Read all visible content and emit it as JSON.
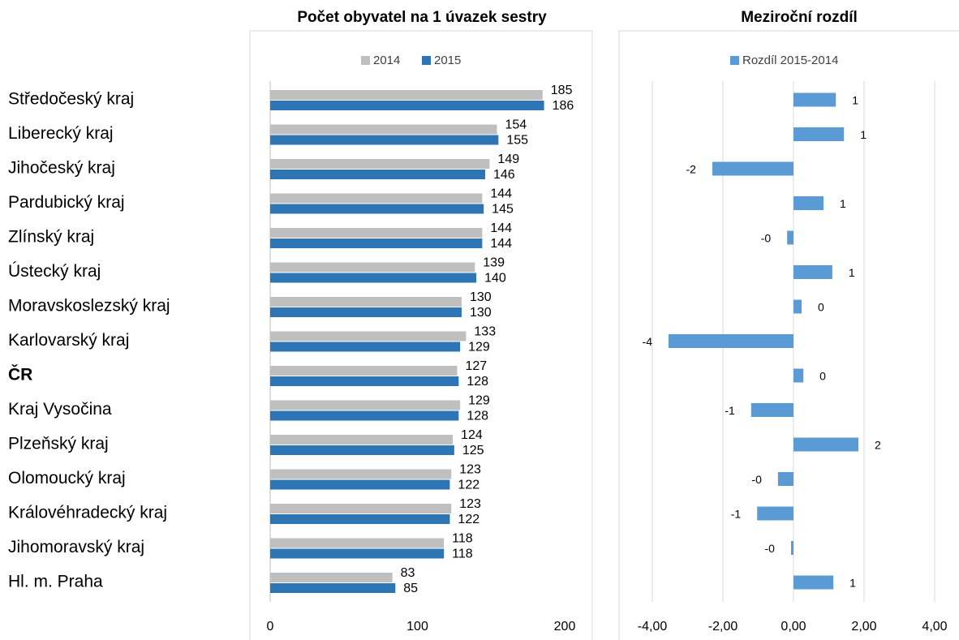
{
  "chart_data": [
    {
      "type": "bar",
      "orientation": "horizontal",
      "title": "Počet obyvatel na 1 úvazek sestry",
      "categories": [
        "Středočeský kraj",
        "Liberecký kraj",
        "Jihočeský kraj",
        "Pardubický kraj",
        "Zlínský kraj",
        "Ústecký kraj",
        "Moravskoslezský kraj",
        "Karlovarský kraj",
        "ČR",
        "Kraj Vysočina",
        "Plzeňský kraj",
        "Olomoucký kraj",
        "Královéhradecký kraj",
        "Jihomoravský kraj",
        "Hl. m. Praha"
      ],
      "series": [
        {
          "name": "2014",
          "color": "#bfbfbf",
          "values": [
            185,
            154,
            149,
            144,
            144,
            139,
            130,
            133,
            127,
            129,
            124,
            123,
            123,
            118,
            83
          ]
        },
        {
          "name": "2015",
          "color": "#2e75b6",
          "values": [
            186,
            155,
            146,
            145,
            144,
            140,
            130,
            129,
            128,
            128,
            125,
            122,
            122,
            118,
            85
          ]
        }
      ],
      "xlim": [
        0,
        200
      ],
      "xticks": [
        0,
        100,
        200
      ],
      "grid": false,
      "legend": "top"
    },
    {
      "type": "bar",
      "orientation": "horizontal",
      "title": "Meziroční rozdíl",
      "series": [
        {
          "name": "Rozdíl 2015-2014",
          "color": "#5b9bd5",
          "values": [
            1.2,
            1.43,
            -2.3,
            0.85,
            -0.18,
            1.1,
            0.23,
            -3.54,
            0.28,
            -1.2,
            1.84,
            -0.44,
            -1.03,
            -0.07,
            1.13
          ],
          "value_labels": [
            "1",
            "1",
            "-2",
            "1",
            "-0",
            "1",
            "0",
            "-4",
            "0",
            "-1",
            "2",
            "-0",
            "-1",
            "-0",
            "1"
          ]
        }
      ],
      "negative_label_color": "#ff0000",
      "xlim": [
        -4,
        4
      ],
      "xticks": [
        {
          "value": -4,
          "label": "-4,00"
        },
        {
          "value": -2,
          "label": "-2,00"
        },
        {
          "value": 0,
          "label": "0,00"
        },
        {
          "value": 2,
          "label": "2,00"
        },
        {
          "value": 4,
          "label": "4,00"
        }
      ],
      "grid": true,
      "legend": "top"
    }
  ]
}
